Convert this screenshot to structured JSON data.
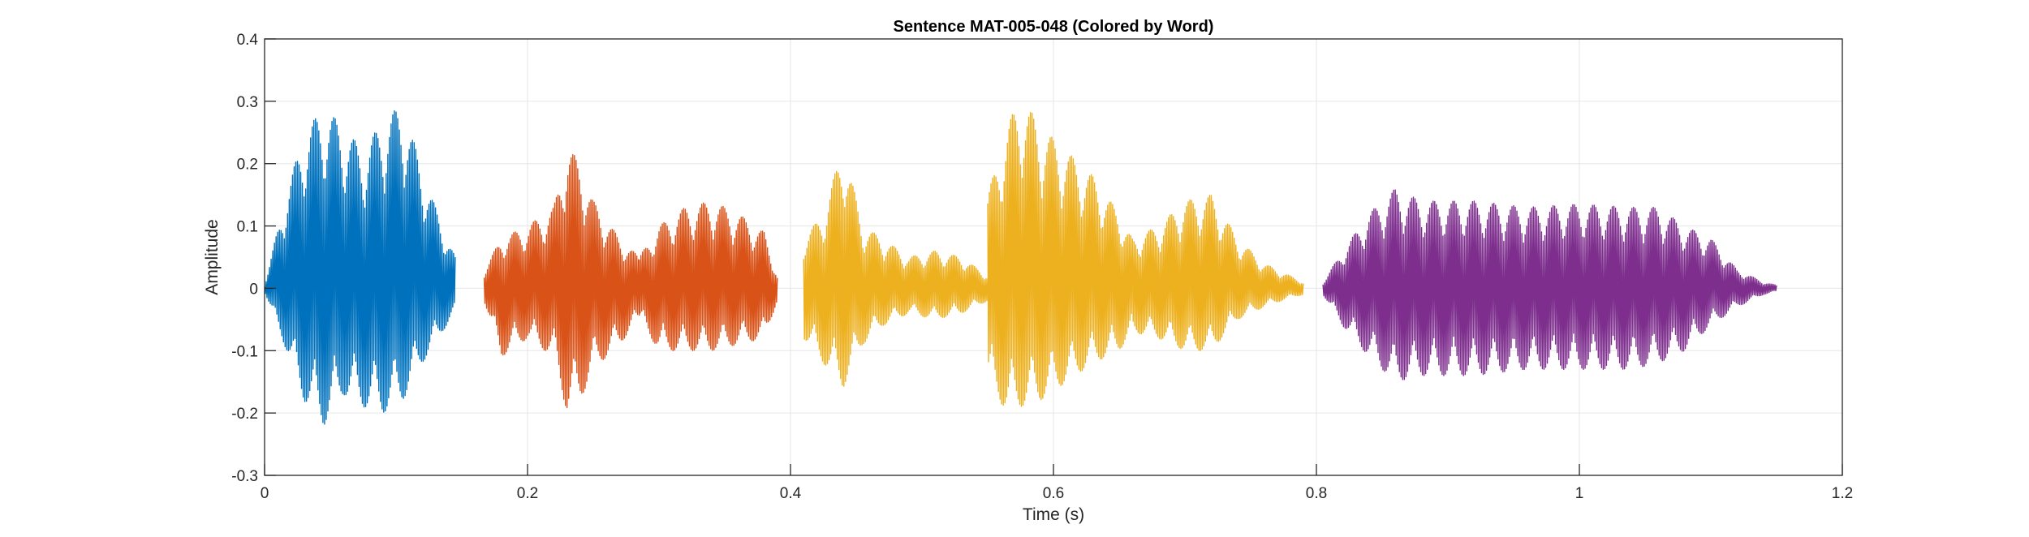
{
  "chart_data": {
    "type": "line",
    "title": "Sentence MAT-005-048 (Colored by Word)",
    "xlabel": "Time (s)",
    "ylabel": "Amplitude",
    "xlim": [
      0,
      1.2
    ],
    "ylim": [
      -0.3,
      0.4
    ],
    "xticks": [
      0,
      0.2,
      0.4,
      0.6,
      0.8,
      1,
      1.2
    ],
    "xtick_labels": [
      "0",
      "0.2",
      "0.4",
      "0.6",
      "0.8",
      "1",
      "1.2"
    ],
    "yticks": [
      -0.3,
      -0.2,
      -0.1,
      0,
      0.1,
      0.2,
      0.3,
      0.4
    ],
    "ytick_labels": [
      "-0.3",
      "-0.2",
      "-0.1",
      "0",
      "0.1",
      "0.2",
      "0.3",
      "0.4"
    ],
    "grid": true,
    "legend": "none",
    "series": [
      {
        "color": "#0072BD",
        "segments": [
          {
            "x": [
              0.0,
              0.015,
              0.03,
              0.045,
              0.06,
              0.075,
              0.09,
              0.105,
              0.12,
              0.135,
              0.145
            ],
            "ymax": [
              0.005,
              0.14,
              0.25,
              0.29,
              0.26,
              0.22,
              0.27,
              0.295,
              0.19,
              0.1,
              0.05
            ],
            "ymin": [
              -0.005,
              -0.09,
              -0.18,
              -0.22,
              -0.17,
              -0.19,
              -0.2,
              -0.18,
              -0.12,
              -0.07,
              -0.04
            ]
          }
        ]
      },
      {
        "color": "#D95319",
        "segments": [
          {
            "x": [
              0.167,
              0.18,
              0.2,
              0.22,
              0.23,
              0.24,
              0.25,
              0.27,
              0.285
            ],
            "ymax": [
              0.03,
              0.08,
              0.1,
              0.13,
              0.23,
              0.2,
              0.14,
              0.08,
              0.05
            ],
            "ymin": [
              -0.02,
              -0.11,
              -0.08,
              -0.11,
              -0.2,
              -0.18,
              -0.13,
              -0.09,
              -0.05
            ]
          },
          {
            "x": [
              0.285,
              0.3,
              0.32,
              0.34,
              0.36,
              0.38,
              0.39
            ],
            "ymax": [
              0.05,
              0.1,
              0.13,
              0.14,
              0.12,
              0.09,
              0.02
            ],
            "ymin": [
              -0.05,
              -0.1,
              -0.1,
              -0.1,
              -0.09,
              -0.08,
              -0.02
            ]
          }
        ]
      },
      {
        "color": "#EDB120",
        "segments": [
          {
            "x": [
              0.41,
              0.425,
              0.44,
              0.455,
              0.47,
              0.49,
              0.51,
              0.53,
              0.55
            ],
            "ymax": [
              0.08,
              0.12,
              0.23,
              0.1,
              0.08,
              0.05,
              0.06,
              0.05,
              0.02
            ],
            "ymin": [
              -0.08,
              -0.12,
              -0.16,
              -0.09,
              -0.06,
              -0.04,
              -0.05,
              -0.04,
              -0.02
            ]
          },
          {
            "x": [
              0.55,
              0.565,
              0.575,
              0.59,
              0.61,
              0.63,
              0.65,
              0.66
            ],
            "ymax": [
              0.15,
              0.26,
              0.31,
              0.26,
              0.22,
              0.18,
              0.12,
              0.08
            ],
            "ymin": [
              -0.15,
              -0.2,
              -0.19,
              -0.18,
              -0.15,
              -0.12,
              -0.1,
              -0.07
            ]
          },
          {
            "x": [
              0.66,
              0.68,
              0.7,
              0.72,
              0.74,
              0.76,
              0.78,
              0.79
            ],
            "ymax": [
              0.08,
              0.1,
              0.14,
              0.15,
              0.08,
              0.04,
              0.02,
              0.01
            ],
            "ymin": [
              -0.07,
              -0.08,
              -0.1,
              -0.1,
              -0.05,
              -0.03,
              -0.015,
              -0.01
            ]
          }
        ]
      },
      {
        "color": "#7E2F8E",
        "segments": [
          {
            "x": [
              0.805,
              0.82,
              0.84,
              0.86,
              0.88,
              0.92,
              0.96,
              1.0,
              1.04,
              1.06,
              1.08,
              1.1,
              1.12,
              1.14,
              1.15
            ],
            "ymax": [
              0.01,
              0.06,
              0.12,
              0.16,
              0.14,
              0.14,
              0.13,
              0.135,
              0.13,
              0.13,
              0.1,
              0.08,
              0.03,
              0.01,
              0.005
            ],
            "ymin": [
              -0.01,
              -0.06,
              -0.11,
              -0.15,
              -0.14,
              -0.14,
              -0.13,
              -0.13,
              -0.13,
              -0.12,
              -0.1,
              -0.06,
              -0.03,
              -0.01,
              -0.005
            ]
          }
        ]
      }
    ]
  }
}
